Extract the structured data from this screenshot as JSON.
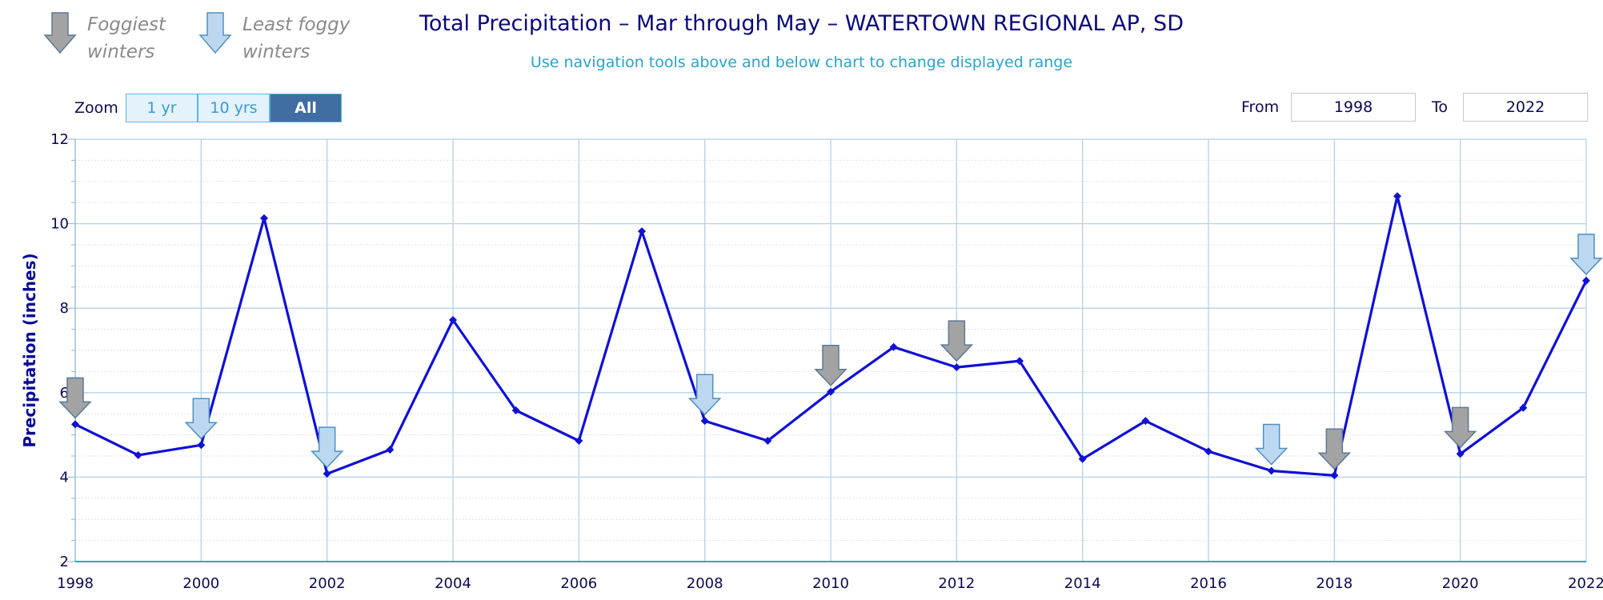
{
  "legend": {
    "foggiest": {
      "line1": "Foggiest",
      "line2": "winters",
      "icon": "arrow-down-gray-icon",
      "color": "#a3a3a3"
    },
    "least_foggy": {
      "line1": "Least foggy",
      "line2": "winters",
      "icon": "arrow-down-lightblue-icon",
      "color": "#bcd8f0"
    }
  },
  "zoom": {
    "label": "Zoom",
    "buttons": [
      {
        "label": "1 yr",
        "active": false
      },
      {
        "label": "10 yrs",
        "active": false
      },
      {
        "label": "All",
        "active": true
      }
    ]
  },
  "range": {
    "from_label": "From",
    "from_value": "1998",
    "to_label": "To",
    "to_value": "2022"
  },
  "chart_data": {
    "type": "line",
    "title": "Total Precipitation – Mar through May – WATERTOWN REGIONAL AP, SD",
    "subtitle": "Use navigation tools above and below chart to change displayed range",
    "ylabel": "Precipitation (inches)",
    "xlabel": "",
    "ylim": [
      2,
      12
    ],
    "xlim": [
      1998,
      2022
    ],
    "yticks": [
      2,
      4,
      6,
      8,
      10,
      12
    ],
    "xticks": [
      1998,
      2000,
      2002,
      2004,
      2006,
      2008,
      2010,
      2012,
      2014,
      2016,
      2018,
      2020,
      2022
    ],
    "grid": true,
    "line_color": "#1010d6",
    "series": [
      {
        "x": [
          1998,
          1999,
          2000,
          2001,
          2002,
          2003,
          2004,
          2005,
          2006,
          2007,
          2008,
          2009,
          2010,
          2011,
          2012,
          2013,
          2014,
          2015,
          2016,
          2017,
          2018,
          2019,
          2020,
          2021,
          2022
        ],
        "values": [
          5.25,
          4.52,
          4.76,
          10.13,
          4.08,
          4.65,
          7.72,
          5.58,
          4.86,
          9.82,
          5.33,
          4.86,
          6.02,
          7.08,
          6.6,
          6.75,
          4.43,
          5.33,
          4.61,
          4.15,
          4.04,
          10.65,
          4.55,
          5.64,
          8.65
        ]
      }
    ],
    "markers": {
      "foggiest": [
        1998,
        2010,
        2012,
        2018,
        2020
      ],
      "least_foggy": [
        2000,
        2002,
        2008,
        2017,
        2022
      ]
    }
  }
}
